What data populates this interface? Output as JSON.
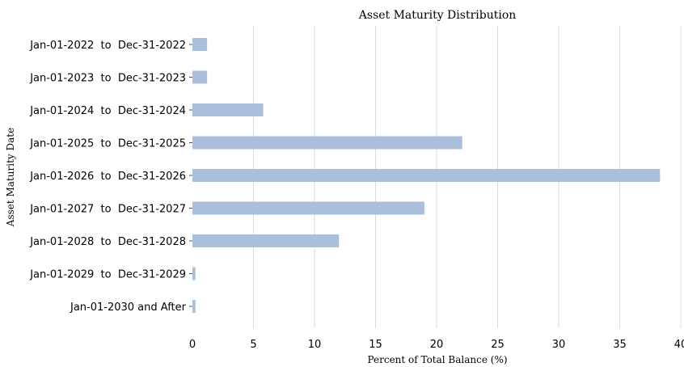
{
  "chart_data": {
    "type": "bar",
    "orientation": "horizontal",
    "title": "Asset Maturity Distribution",
    "xlabel": "Percent of Total Balance (%)",
    "ylabel": "Asset Maturity Date",
    "xlim": [
      0,
      40
    ],
    "xticks": [
      "0",
      "5",
      "10",
      "15",
      "20",
      "25",
      "30",
      "35",
      "40"
    ],
    "grid": "vertical",
    "categories": [
      "Jan-01-2022  to  Dec-31-2022",
      "Jan-01-2023  to  Dec-31-2023",
      "Jan-01-2024  to  Dec-31-2024",
      "Jan-01-2025  to  Dec-31-2025",
      "Jan-01-2026  to  Dec-31-2026",
      "Jan-01-2027  to  Dec-31-2027",
      "Jan-01-2028  to  Dec-31-2028",
      "Jan-01-2029  to  Dec-31-2029",
      "Jan-01-2030 and After"
    ],
    "values": [
      1.2,
      1.2,
      5.8,
      22.1,
      38.3,
      19.0,
      12.0,
      0.25,
      0.25
    ],
    "bar_color": "#a9bfdc"
  }
}
